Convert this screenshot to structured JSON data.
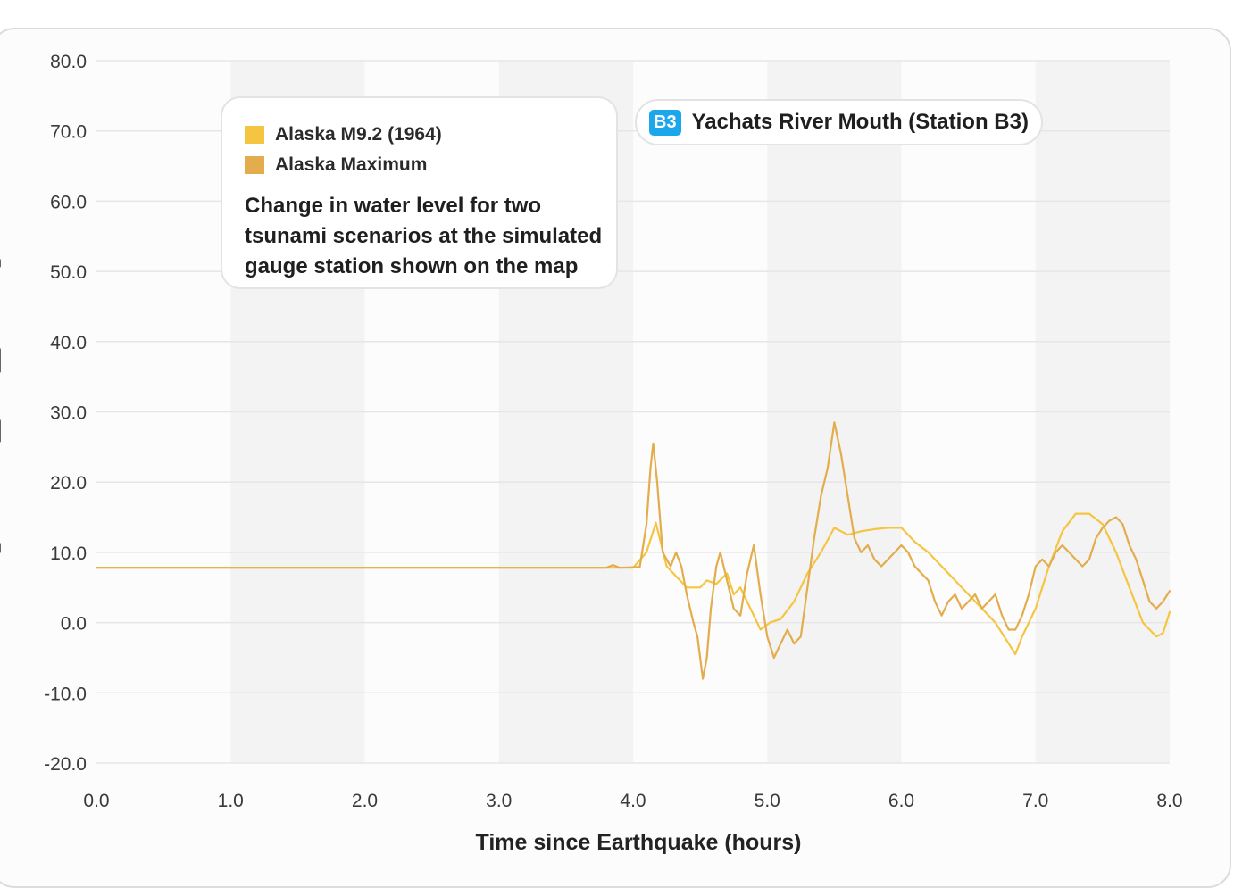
{
  "chart_data": {
    "type": "line",
    "title": "",
    "xlabel": "Time since Earthquake  (hours)",
    "ylabel": "",
    "xlim": [
      0,
      8
    ],
    "ylim": [
      -20,
      80
    ],
    "x_ticks": [
      "0.0",
      "1.0",
      "2.0",
      "3.0",
      "4.0",
      "5.0",
      "6.0",
      "7.0",
      "8.0"
    ],
    "y_ticks": [
      "80.0",
      "70.0",
      "60.0",
      "50.0",
      "40.0",
      "30.0",
      "20.0",
      "10.0",
      "0.0",
      "-10.0",
      "-20.0"
    ],
    "grid": true,
    "legend_position": "top-left",
    "series": [
      {
        "name": "Alaska M9.2 (1964)",
        "color": "#f5c542",
        "points": [
          [
            0,
            7.8
          ],
          [
            3.85,
            7.8
          ],
          [
            4.0,
            7.8
          ],
          [
            4.1,
            10
          ],
          [
            4.17,
            14.2
          ],
          [
            4.25,
            8
          ],
          [
            4.3,
            7
          ],
          [
            4.4,
            5
          ],
          [
            4.5,
            5
          ],
          [
            4.55,
            6
          ],
          [
            4.62,
            5.5
          ],
          [
            4.7,
            7
          ],
          [
            4.75,
            4
          ],
          [
            4.8,
            5
          ],
          [
            4.85,
            3
          ],
          [
            4.95,
            -1
          ],
          [
            5.02,
            0
          ],
          [
            5.1,
            0.5
          ],
          [
            5.2,
            3
          ],
          [
            5.3,
            7
          ],
          [
            5.4,
            10
          ],
          [
            5.5,
            13.5
          ],
          [
            5.6,
            12.5
          ],
          [
            5.7,
            13
          ],
          [
            5.8,
            13.3
          ],
          [
            5.9,
            13.5
          ],
          [
            6.0,
            13.5
          ],
          [
            6.1,
            11.5
          ],
          [
            6.2,
            10
          ],
          [
            6.3,
            8
          ],
          [
            6.4,
            6
          ],
          [
            6.5,
            4
          ],
          [
            6.6,
            2
          ],
          [
            6.7,
            0
          ],
          [
            6.8,
            -3
          ],
          [
            6.85,
            -4.5
          ],
          [
            6.9,
            -2
          ],
          [
            7.0,
            2
          ],
          [
            7.1,
            8
          ],
          [
            7.2,
            13
          ],
          [
            7.3,
            15.5
          ],
          [
            7.4,
            15.5
          ],
          [
            7.5,
            14
          ],
          [
            7.6,
            10
          ],
          [
            7.7,
            5
          ],
          [
            7.8,
            0
          ],
          [
            7.9,
            -2
          ],
          [
            7.95,
            -1.5
          ],
          [
            8.0,
            1.5
          ]
        ]
      },
      {
        "name": "Alaska Maximum",
        "color": "#e3ad4e",
        "points": [
          [
            0,
            7.8
          ],
          [
            3.8,
            7.8
          ],
          [
            3.85,
            8.2
          ],
          [
            3.9,
            7.8
          ],
          [
            4.05,
            7.9
          ],
          [
            4.1,
            14
          ],
          [
            4.13,
            22
          ],
          [
            4.15,
            25.5
          ],
          [
            4.18,
            20
          ],
          [
            4.22,
            10
          ],
          [
            4.28,
            8
          ],
          [
            4.32,
            10
          ],
          [
            4.36,
            8
          ],
          [
            4.4,
            4
          ],
          [
            4.45,
            0
          ],
          [
            4.48,
            -2
          ],
          [
            4.52,
            -8
          ],
          [
            4.55,
            -5
          ],
          [
            4.58,
            2
          ],
          [
            4.62,
            8
          ],
          [
            4.65,
            10
          ],
          [
            4.7,
            6
          ],
          [
            4.75,
            2
          ],
          [
            4.8,
            1
          ],
          [
            4.85,
            7
          ],
          [
            4.9,
            11
          ],
          [
            4.95,
            4
          ],
          [
            5.0,
            -2
          ],
          [
            5.05,
            -5
          ],
          [
            5.1,
            -3
          ],
          [
            5.15,
            -1
          ],
          [
            5.2,
            -3
          ],
          [
            5.25,
            -2
          ],
          [
            5.3,
            5
          ],
          [
            5.35,
            12
          ],
          [
            5.4,
            18
          ],
          [
            5.45,
            22
          ],
          [
            5.5,
            28.5
          ],
          [
            5.55,
            24
          ],
          [
            5.6,
            18
          ],
          [
            5.65,
            12
          ],
          [
            5.7,
            10
          ],
          [
            5.75,
            11
          ],
          [
            5.8,
            9
          ],
          [
            5.85,
            8
          ],
          [
            5.9,
            9
          ],
          [
            5.95,
            10
          ],
          [
            6.0,
            11
          ],
          [
            6.05,
            10
          ],
          [
            6.1,
            8
          ],
          [
            6.15,
            7
          ],
          [
            6.2,
            6
          ],
          [
            6.25,
            3
          ],
          [
            6.3,
            1
          ],
          [
            6.35,
            3
          ],
          [
            6.4,
            4
          ],
          [
            6.45,
            2
          ],
          [
            6.5,
            3
          ],
          [
            6.55,
            4
          ],
          [
            6.6,
            2
          ],
          [
            6.7,
            4
          ],
          [
            6.75,
            1
          ],
          [
            6.8,
            -1
          ],
          [
            6.85,
            -1
          ],
          [
            6.9,
            1
          ],
          [
            6.95,
            4
          ],
          [
            7.0,
            8
          ],
          [
            7.05,
            9
          ],
          [
            7.1,
            8
          ],
          [
            7.15,
            10
          ],
          [
            7.2,
            11
          ],
          [
            7.25,
            10
          ],
          [
            7.3,
            9
          ],
          [
            7.35,
            8
          ],
          [
            7.4,
            9
          ],
          [
            7.45,
            12
          ],
          [
            7.5,
            13.5
          ],
          [
            7.55,
            14.5
          ],
          [
            7.6,
            15
          ],
          [
            7.65,
            14
          ],
          [
            7.7,
            11
          ],
          [
            7.75,
            9
          ],
          [
            7.8,
            6
          ],
          [
            7.85,
            3
          ],
          [
            7.9,
            2
          ],
          [
            7.95,
            3
          ],
          [
            8.0,
            4.5
          ]
        ]
      }
    ]
  },
  "legend": {
    "items": [
      {
        "label": "Alaska M9.2 (1964)",
        "color": "#f5c542"
      },
      {
        "label": "Alaska Maximum",
        "color": "#e3ad4e"
      }
    ],
    "caption": "Change in water level for two tsunami scenarios at the simulated gauge station shown on the map"
  },
  "station": {
    "badge": "B3",
    "name": "Yachats River Mouth (Station B3)"
  },
  "colors": {
    "band": "#f3f3f3",
    "grid": "#e6e6e6",
    "badge": "#1aa7ec"
  }
}
